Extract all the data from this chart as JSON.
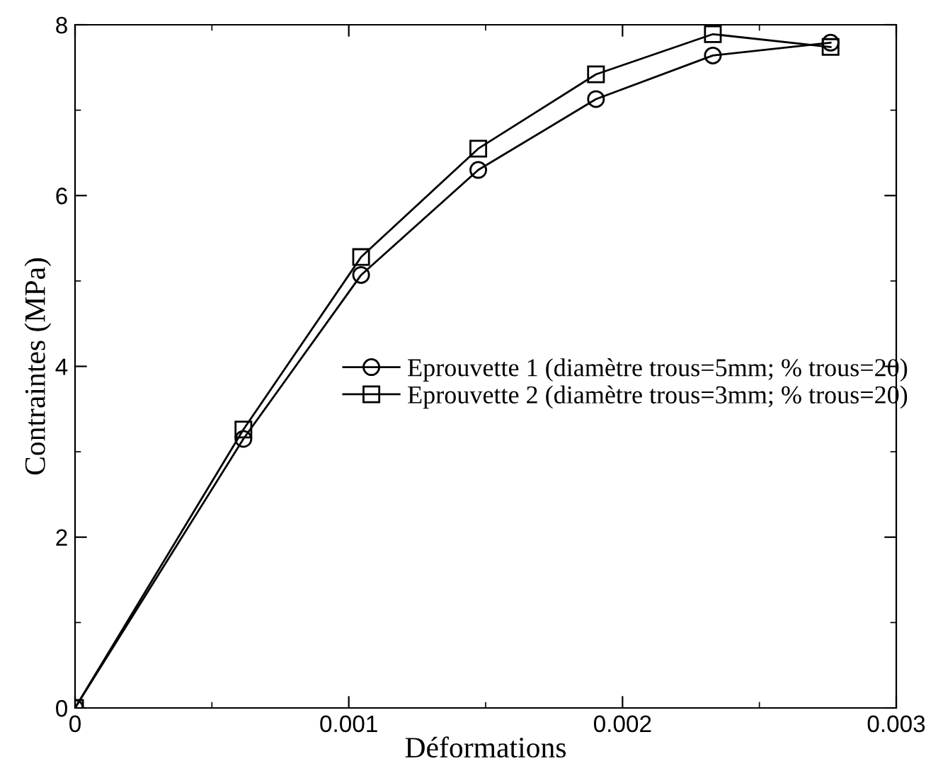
{
  "chart_data": {
    "type": "line",
    "xlabel": "Déformations",
    "ylabel": "Contraintes (MPa)",
    "xlim": [
      0,
      0.003
    ],
    "xticks": [
      0,
      0.001,
      0.002,
      0.003
    ],
    "ylim": [
      0,
      8
    ],
    "yticks": [
      0,
      2,
      4,
      6,
      8
    ],
    "grid": false,
    "legend": "right",
    "line_style": "solid",
    "series": [
      {
        "name": "Eprouvette 1 (diamètre trous=5mm; % trous=20)",
        "color": "#000000",
        "marker": "circle",
        "x": [
          0,
          0.000615,
          0.001045,
          0.001473,
          0.001903,
          0.00233,
          0.00276
        ],
        "values": [
          0,
          3.15,
          5.07,
          6.3,
          7.13,
          7.64,
          7.79
        ]
      },
      {
        "name": "Eprouvette 2 (diamètre trous=3mm; % trous=20)",
        "color": "#000000",
        "marker": "square",
        "x": [
          0,
          0.000615,
          0.001045,
          0.001473,
          0.001903,
          0.00233,
          0.00276
        ],
        "values": [
          0,
          3.26,
          5.28,
          6.55,
          7.42,
          7.89,
          7.74
        ]
      }
    ]
  }
}
